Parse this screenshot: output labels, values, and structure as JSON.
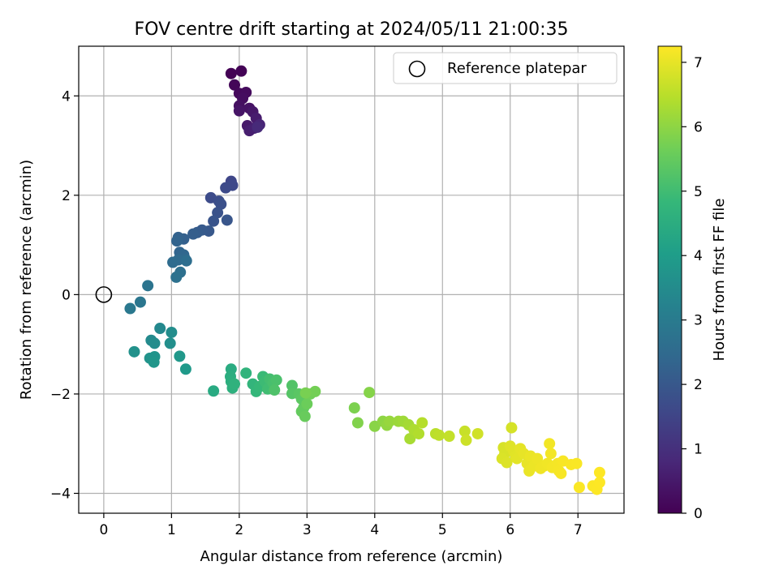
{
  "chart_data": {
    "type": "scatter",
    "title": "FOV centre drift starting at 2024/05/11 21:00:35",
    "xlabel": "Angular distance from reference (arcmin)",
    "ylabel": "Rotation from reference (arcmin)",
    "xlim": [
      -0.37,
      7.68
    ],
    "ylim": [
      -4.4,
      5.0
    ],
    "xticks": [
      "0",
      "1",
      "2",
      "3",
      "4",
      "5",
      "6",
      "7"
    ],
    "xtick_values": [
      0,
      1,
      2,
      3,
      4,
      5,
      6,
      7
    ],
    "yticks": [
      "−4",
      "−2",
      "0",
      "2",
      "4"
    ],
    "ytick_values": [
      -4,
      -2,
      0,
      2,
      4
    ],
    "grid": true,
    "legend": {
      "placement": "top-right",
      "entries": [
        {
          "label": "Reference platepar",
          "marker": "open-circle"
        }
      ]
    },
    "reference_point": {
      "x": 0,
      "y": 0
    },
    "colorbar": {
      "label": "Hours from first FF file",
      "range": [
        0,
        7.25
      ],
      "ticks": [
        "0",
        "1",
        "2",
        "3",
        "4",
        "5",
        "6",
        "7"
      ],
      "tick_values": [
        0,
        1,
        2,
        3,
        4,
        5,
        6,
        7
      ],
      "colormap": "viridis",
      "stops": [
        "#440154",
        "#482878",
        "#3e4989",
        "#31688e",
        "#26828e",
        "#1f9e89",
        "#35b779",
        "#6ece58",
        "#b5de2b",
        "#fde725"
      ]
    },
    "points": [
      {
        "x": 1.88,
        "y": 4.45,
        "t": 0.02
      },
      {
        "x": 2.03,
        "y": 4.5,
        "t": 0.05
      },
      {
        "x": 1.93,
        "y": 4.22,
        "t": 0.1
      },
      {
        "x": 2.0,
        "y": 4.05,
        "t": 0.15
      },
      {
        "x": 2.1,
        "y": 4.07,
        "t": 0.2
      },
      {
        "x": 2.05,
        "y": 3.95,
        "t": 0.25
      },
      {
        "x": 2.0,
        "y": 3.8,
        "t": 0.3
      },
      {
        "x": 2.15,
        "y": 3.75,
        "t": 0.35
      },
      {
        "x": 2.0,
        "y": 3.7,
        "t": 0.4
      },
      {
        "x": 2.2,
        "y": 3.68,
        "t": 0.45
      },
      {
        "x": 2.12,
        "y": 3.4,
        "t": 0.5
      },
      {
        "x": 2.25,
        "y": 3.55,
        "t": 0.55
      },
      {
        "x": 2.15,
        "y": 3.3,
        "t": 0.6
      },
      {
        "x": 2.22,
        "y": 3.35,
        "t": 0.65
      },
      {
        "x": 2.3,
        "y": 3.42,
        "t": 0.75
      },
      {
        "x": 2.27,
        "y": 3.37,
        "t": 0.85
      },
      {
        "x": 1.88,
        "y": 2.28,
        "t": 1.55
      },
      {
        "x": 1.9,
        "y": 2.2,
        "t": 1.6
      },
      {
        "x": 1.8,
        "y": 2.15,
        "t": 1.65
      },
      {
        "x": 1.58,
        "y": 1.95,
        "t": 1.7
      },
      {
        "x": 1.7,
        "y": 1.88,
        "t": 1.75
      },
      {
        "x": 1.73,
        "y": 1.82,
        "t": 1.8
      },
      {
        "x": 1.68,
        "y": 1.65,
        "t": 1.85
      },
      {
        "x": 1.62,
        "y": 1.48,
        "t": 1.9
      },
      {
        "x": 1.82,
        "y": 1.5,
        "t": 1.95
      },
      {
        "x": 1.55,
        "y": 1.28,
        "t": 2.0
      },
      {
        "x": 1.45,
        "y": 1.3,
        "t": 2.05
      },
      {
        "x": 1.38,
        "y": 1.25,
        "t": 2.1
      },
      {
        "x": 1.32,
        "y": 1.22,
        "t": 2.15
      },
      {
        "x": 1.18,
        "y": 1.12,
        "t": 2.2
      },
      {
        "x": 1.1,
        "y": 1.15,
        "t": 2.25
      },
      {
        "x": 1.08,
        "y": 1.08,
        "t": 2.3
      },
      {
        "x": 1.12,
        "y": 0.85,
        "t": 2.35
      },
      {
        "x": 1.18,
        "y": 0.8,
        "t": 2.4
      },
      {
        "x": 1.2,
        "y": 0.72,
        "t": 2.45
      },
      {
        "x": 1.1,
        "y": 0.7,
        "t": 2.5
      },
      {
        "x": 1.02,
        "y": 0.65,
        "t": 2.55
      },
      {
        "x": 1.22,
        "y": 0.68,
        "t": 2.6
      },
      {
        "x": 1.13,
        "y": 0.45,
        "t": 2.65
      },
      {
        "x": 1.07,
        "y": 0.35,
        "t": 2.7
      },
      {
        "x": 0.65,
        "y": 0.18,
        "t": 2.8
      },
      {
        "x": 0.54,
        "y": -0.15,
        "t": 2.85
      },
      {
        "x": 0.39,
        "y": -0.28,
        "t": 2.9
      },
      {
        "x": 0.83,
        "y": -0.68,
        "t": 3.4
      },
      {
        "x": 0.7,
        "y": -0.92,
        "t": 3.45
      },
      {
        "x": 0.75,
        "y": -0.98,
        "t": 3.5
      },
      {
        "x": 1.0,
        "y": -0.76,
        "t": 3.55
      },
      {
        "x": 0.98,
        "y": -0.98,
        "t": 3.6
      },
      {
        "x": 0.45,
        "y": -1.15,
        "t": 3.65
      },
      {
        "x": 0.68,
        "y": -1.28,
        "t": 3.7
      },
      {
        "x": 0.75,
        "y": -1.25,
        "t": 3.75
      },
      {
        "x": 0.74,
        "y": -1.36,
        "t": 3.8
      },
      {
        "x": 1.12,
        "y": -1.24,
        "t": 3.85
      },
      {
        "x": 1.21,
        "y": -1.5,
        "t": 3.9
      },
      {
        "x": 1.62,
        "y": -1.94,
        "t": 4.4
      },
      {
        "x": 1.88,
        "y": -1.5,
        "t": 4.45
      },
      {
        "x": 1.87,
        "y": -1.65,
        "t": 4.5
      },
      {
        "x": 1.88,
        "y": -1.75,
        "t": 4.55
      },
      {
        "x": 1.9,
        "y": -1.88,
        "t": 4.6
      },
      {
        "x": 1.93,
        "y": -1.8,
        "t": 4.65
      },
      {
        "x": 2.1,
        "y": -1.58,
        "t": 4.7
      },
      {
        "x": 2.2,
        "y": -1.8,
        "t": 4.75
      },
      {
        "x": 2.25,
        "y": -1.95,
        "t": 4.8
      },
      {
        "x": 2.3,
        "y": -1.85,
        "t": 4.85
      },
      {
        "x": 2.35,
        "y": -1.65,
        "t": 4.9
      },
      {
        "x": 2.38,
        "y": -1.75,
        "t": 4.95
      },
      {
        "x": 2.42,
        "y": -1.9,
        "t": 5.0
      },
      {
        "x": 2.45,
        "y": -1.7,
        "t": 5.05
      },
      {
        "x": 2.5,
        "y": -1.78,
        "t": 5.1
      },
      {
        "x": 2.55,
        "y": -1.72,
        "t": 5.15
      },
      {
        "x": 2.52,
        "y": -1.92,
        "t": 5.2
      },
      {
        "x": 2.78,
        "y": -1.83,
        "t": 5.25
      },
      {
        "x": 2.78,
        "y": -1.99,
        "t": 5.3
      },
      {
        "x": 2.88,
        "y": -2.0,
        "t": 5.35
      },
      {
        "x": 2.92,
        "y": -2.1,
        "t": 5.4
      },
      {
        "x": 2.95,
        "y": -2.28,
        "t": 5.45
      },
      {
        "x": 2.92,
        "y": -2.35,
        "t": 5.5
      },
      {
        "x": 2.97,
        "y": -2.45,
        "t": 5.55
      },
      {
        "x": 3.0,
        "y": -2.2,
        "t": 5.6
      },
      {
        "x": 3.05,
        "y": -2.0,
        "t": 5.65
      },
      {
        "x": 3.12,
        "y": -1.95,
        "t": 5.7
      },
      {
        "x": 2.98,
        "y": -1.98,
        "t": 5.75
      },
      {
        "x": 3.7,
        "y": -2.28,
        "t": 5.8
      },
      {
        "x": 3.75,
        "y": -2.58,
        "t": 5.85
      },
      {
        "x": 3.92,
        "y": -1.97,
        "t": 5.9
      },
      {
        "x": 4.0,
        "y": -2.65,
        "t": 5.95
      },
      {
        "x": 4.12,
        "y": -2.55,
        "t": 6.0
      },
      {
        "x": 4.18,
        "y": -2.63,
        "t": 6.05
      },
      {
        "x": 4.22,
        "y": -2.55,
        "t": 6.1
      },
      {
        "x": 4.35,
        "y": -2.55,
        "t": 6.15
      },
      {
        "x": 4.42,
        "y": -2.55,
        "t": 6.2
      },
      {
        "x": 4.5,
        "y": -2.62,
        "t": 6.25
      },
      {
        "x": 4.52,
        "y": -2.9,
        "t": 6.3
      },
      {
        "x": 4.58,
        "y": -2.72,
        "t": 6.35
      },
      {
        "x": 4.65,
        "y": -2.8,
        "t": 6.4
      },
      {
        "x": 4.7,
        "y": -2.58,
        "t": 6.45
      },
      {
        "x": 4.9,
        "y": -2.8,
        "t": 6.5
      },
      {
        "x": 4.95,
        "y": -2.83,
        "t": 6.55
      },
      {
        "x": 5.1,
        "y": -2.85,
        "t": 6.6
      },
      {
        "x": 5.33,
        "y": -2.75,
        "t": 6.65
      },
      {
        "x": 5.35,
        "y": -2.93,
        "t": 6.7
      },
      {
        "x": 5.52,
        "y": -2.8,
        "t": 6.75
      },
      {
        "x": 6.02,
        "y": -2.68,
        "t": 6.8
      },
      {
        "x": 5.9,
        "y": -3.08,
        "t": 6.82
      },
      {
        "x": 5.92,
        "y": -3.2,
        "t": 6.84
      },
      {
        "x": 5.88,
        "y": -3.3,
        "t": 6.86
      },
      {
        "x": 5.95,
        "y": -3.38,
        "t": 6.88
      },
      {
        "x": 6.0,
        "y": -3.05,
        "t": 6.9
      },
      {
        "x": 6.05,
        "y": -3.15,
        "t": 6.92
      },
      {
        "x": 6.08,
        "y": -3.25,
        "t": 6.94
      },
      {
        "x": 6.1,
        "y": -3.3,
        "t": 6.96
      },
      {
        "x": 6.15,
        "y": -3.1,
        "t": 6.98
      },
      {
        "x": 6.2,
        "y": -3.2,
        "t": 7.0
      },
      {
        "x": 6.25,
        "y": -3.4,
        "t": 7.02
      },
      {
        "x": 6.28,
        "y": -3.55,
        "t": 7.04
      },
      {
        "x": 6.3,
        "y": -3.25,
        "t": 7.05
      },
      {
        "x": 6.35,
        "y": -3.45,
        "t": 7.06
      },
      {
        "x": 6.4,
        "y": -3.3,
        "t": 7.08
      },
      {
        "x": 6.45,
        "y": -3.5,
        "t": 7.1
      },
      {
        "x": 6.5,
        "y": -3.45,
        "t": 7.11
      },
      {
        "x": 6.55,
        "y": -3.4,
        "t": 7.12
      },
      {
        "x": 6.58,
        "y": -3.0,
        "t": 7.13
      },
      {
        "x": 6.6,
        "y": -3.2,
        "t": 7.14
      },
      {
        "x": 6.62,
        "y": -3.48,
        "t": 7.15
      },
      {
        "x": 6.7,
        "y": -3.4,
        "t": 7.16
      },
      {
        "x": 6.72,
        "y": -3.55,
        "t": 7.17
      },
      {
        "x": 6.75,
        "y": -3.6,
        "t": 7.18
      },
      {
        "x": 6.78,
        "y": -3.35,
        "t": 7.19
      },
      {
        "x": 6.9,
        "y": -3.42,
        "t": 7.2
      },
      {
        "x": 6.98,
        "y": -3.4,
        "t": 7.21
      },
      {
        "x": 7.02,
        "y": -3.88,
        "t": 7.22
      },
      {
        "x": 7.22,
        "y": -3.85,
        "t": 7.23
      },
      {
        "x": 7.28,
        "y": -3.92,
        "t": 7.24
      },
      {
        "x": 7.32,
        "y": -3.58,
        "t": 7.25
      },
      {
        "x": 7.32,
        "y": -3.78,
        "t": 7.25
      }
    ]
  }
}
